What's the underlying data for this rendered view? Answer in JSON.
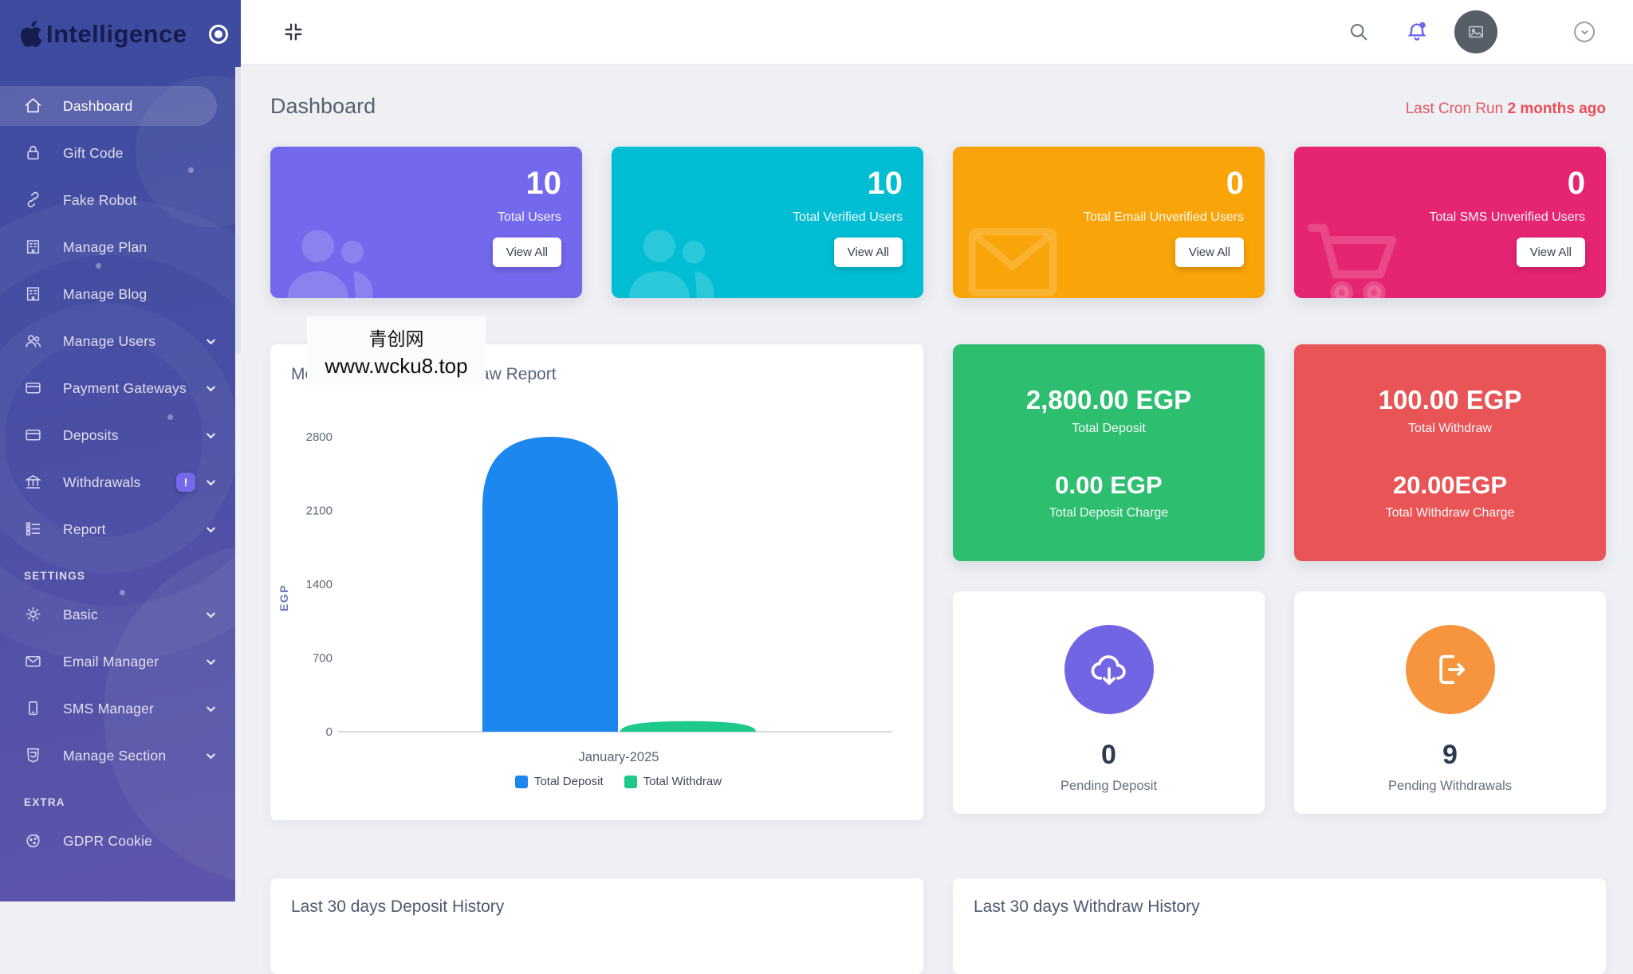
{
  "brand": {
    "name": "Intelligence",
    "logo_icon": "apple-icon"
  },
  "topbar": {
    "collapse_icon": "compress-icon",
    "search_icon": "search-icon",
    "notifications_icon": "bell-icon",
    "avatar_icon": "image-placeholder-icon",
    "accent_color": "#7166e8"
  },
  "page": {
    "title": "Dashboard",
    "cron_label": "Last Cron Run",
    "cron_value": "2 months ago",
    "cron_color": "#ea5455"
  },
  "sidebar": {
    "headers": {
      "settings": "SETTINGS",
      "extra": "EXTRA"
    },
    "items": [
      {
        "label": "Dashboard",
        "icon": "home-icon",
        "active": true
      },
      {
        "label": "Gift Code",
        "icon": "lock-icon"
      },
      {
        "label": "Fake Robot",
        "icon": "link-icon"
      },
      {
        "label": "Manage Plan",
        "icon": "building-icon"
      },
      {
        "label": "Manage Blog",
        "icon": "building-icon"
      },
      {
        "label": "Manage Users",
        "icon": "users-icon",
        "chevron": true
      },
      {
        "label": "Payment Gateways",
        "icon": "credit-card-icon",
        "chevron": true
      },
      {
        "label": "Deposits",
        "icon": "credit-card-icon",
        "chevron": true
      },
      {
        "label": "Withdrawals",
        "icon": "bank-icon",
        "chevron": true,
        "badge": "!"
      },
      {
        "label": "Report",
        "icon": "report-list-icon",
        "chevron": true
      },
      {
        "label": "Basic",
        "icon": "gear-icon",
        "chevron": true
      },
      {
        "label": "Email Manager",
        "icon": "envelope-icon",
        "chevron": true
      },
      {
        "label": "SMS Manager",
        "icon": "mobile-icon",
        "chevron": true
      },
      {
        "label": "Manage Section",
        "icon": "html5-icon",
        "chevron": true
      },
      {
        "label": "GDPR Cookie",
        "icon": "cookie-icon"
      }
    ]
  },
  "stat_cards": [
    {
      "value": "10",
      "label": "Total Users",
      "button": "View All",
      "color": "#7468ec",
      "icon": "users-icon"
    },
    {
      "value": "10",
      "label": "Total Verified Users",
      "button": "View All",
      "color": "#00bdd4",
      "icon": "users-icon"
    },
    {
      "value": "0",
      "label": "Total Email Unverified Users",
      "button": "View All",
      "color": "#f9a408",
      "icon": "envelope-icon"
    },
    {
      "value": "0",
      "label": "Total SMS Unverified Users",
      "button": "View All",
      "color": "#e52472",
      "icon": "cart-icon"
    }
  ],
  "summary_cards": [
    {
      "amount": "2,800.00 EGP",
      "amount_label": "Total Deposit",
      "charge": "0.00 EGP",
      "charge_label": "Total Deposit Charge",
      "color": "#2dbe70"
    },
    {
      "amount": "100.00 EGP",
      "amount_label": "Total Withdraw",
      "charge": "20.00EGP",
      "charge_label": "Total Withdraw Charge",
      "color": "#e95556"
    }
  ],
  "pending_cards": [
    {
      "value": "0",
      "label": "Pending Deposit",
      "icon": "cloud-download-icon",
      "color": "#7165e3"
    },
    {
      "value": "9",
      "label": "Pending Withdrawals",
      "icon": "sign-out-icon",
      "color": "#f6953e"
    }
  ],
  "history_cards": [
    {
      "title": "Last 30 days Deposit History"
    },
    {
      "title": "Last 30 days Withdraw History"
    }
  ],
  "watermark": {
    "line1": "青创网",
    "line2": "www.wcku8.top"
  },
  "chart_data": {
    "type": "bar",
    "title": "Monthly Deposit & Withdraw Report",
    "categories": [
      "January-2025"
    ],
    "series": [
      {
        "name": "Total Deposit",
        "values": [
          2800
        ],
        "color": "#1b87ef"
      },
      {
        "name": "Total Withdraw",
        "values": [
          100
        ],
        "color": "#1fc98c"
      }
    ],
    "ylabel": "EGP",
    "xlabel": "",
    "ylim": [
      0,
      2800
    ],
    "yticks": [
      "2800",
      "2100",
      "1400",
      "700",
      "0"
    ],
    "ytick_values": [
      2800,
      2100,
      1400,
      700,
      0
    ],
    "grid": false,
    "legend_position": "bottom"
  }
}
